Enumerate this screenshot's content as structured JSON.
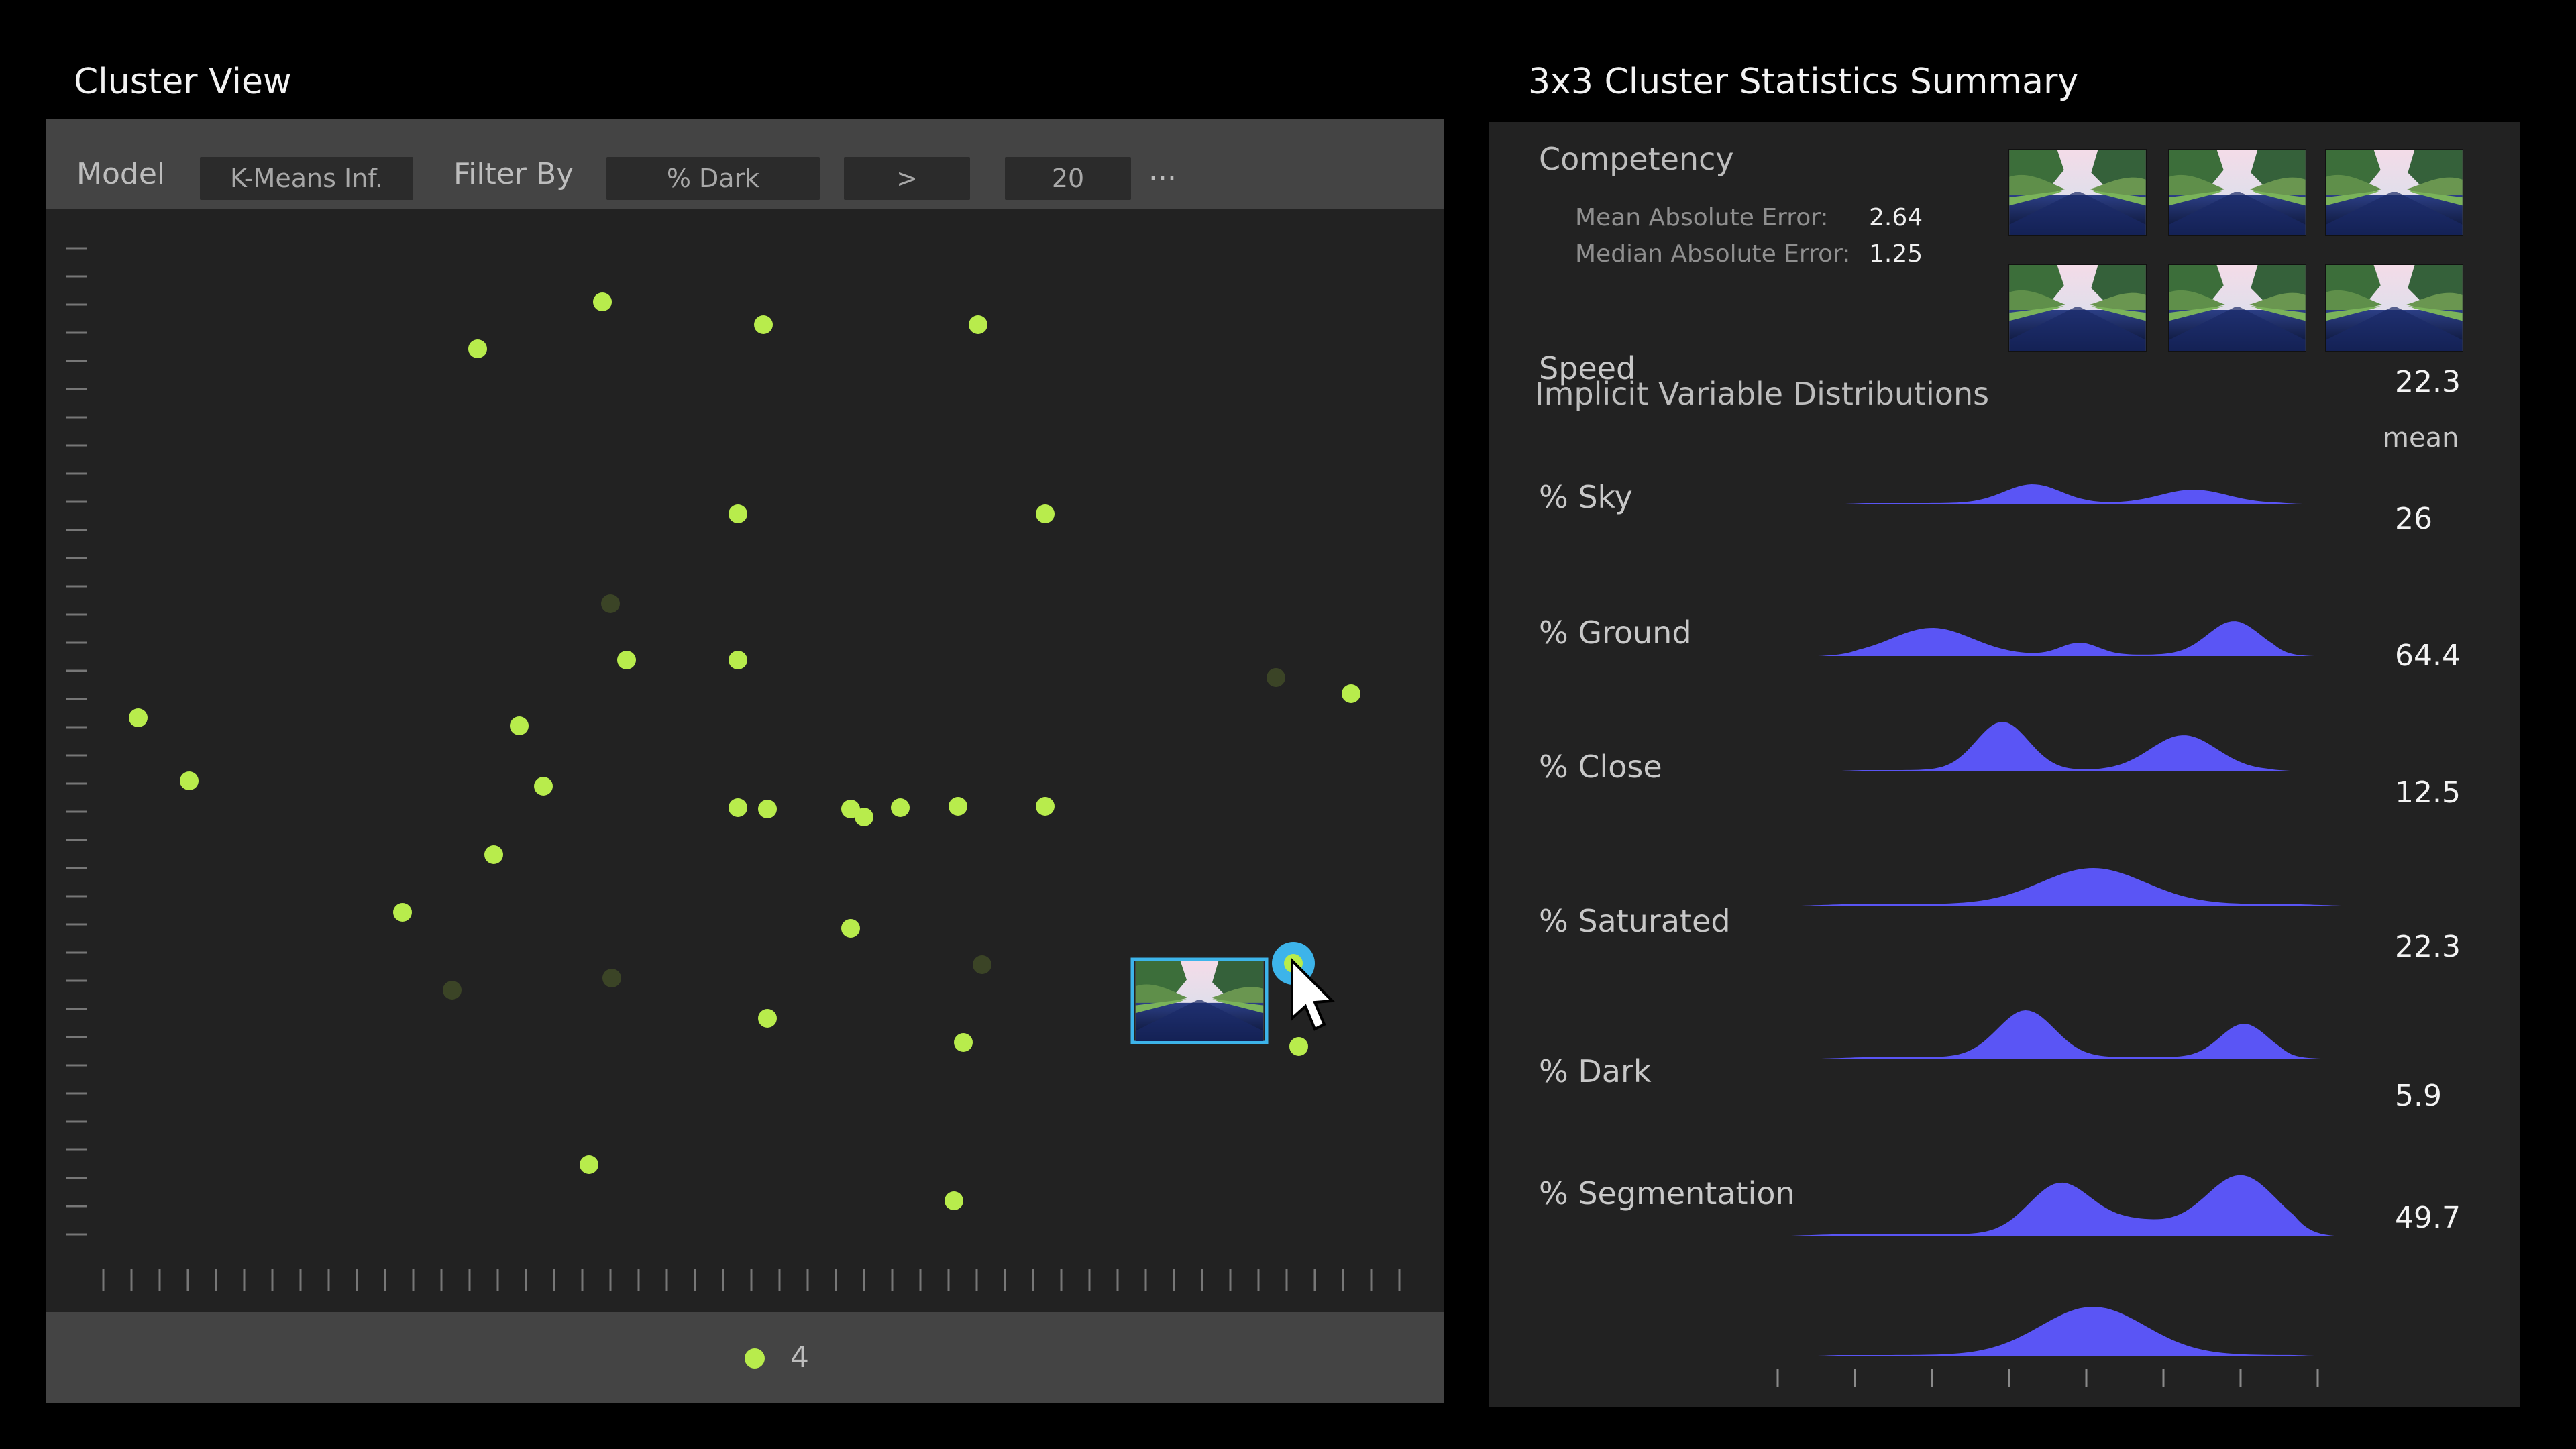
{
  "cluster_view": {
    "title": "Cluster View",
    "toolbar": {
      "model_label": "Model",
      "model_value": "K-Means Inf.",
      "filter_label": "Filter By",
      "filter_field": "% Dark",
      "filter_operator": ">",
      "filter_value": "20",
      "more": "..."
    },
    "legend": {
      "cluster_label": "4",
      "cluster_color": "#b8ec4c"
    },
    "points_active_color": "#b8ec4c",
    "points_dimmed_color": "#3b4426",
    "hover_ring_color": "#3db4ea"
  },
  "summary": {
    "title": "3x3 Cluster Statistics Summary",
    "competency": {
      "heading": "Competency",
      "mae_label": "Mean Absolute Error:",
      "mae_value": "2.64",
      "median_label": "Median Absolute Error:",
      "median_value": "1.25"
    },
    "distributions": {
      "heading": "Implicit Variable Distributions",
      "mean_header": "mean",
      "fill_color": "#5a55f5",
      "variables": [
        {
          "label": "Speed",
          "mean": "22.3"
        },
        {
          "label": "% Sky",
          "mean": "26"
        },
        {
          "label": "% Ground",
          "mean": "64.4"
        },
        {
          "label": "% Close",
          "mean": "12.5"
        },
        {
          "label": "% Saturated",
          "mean": "22.3"
        },
        {
          "label": "% Dark",
          "mean": "5.9"
        },
        {
          "label": "% Segmentation",
          "mean": "49.7"
        }
      ]
    }
  }
}
